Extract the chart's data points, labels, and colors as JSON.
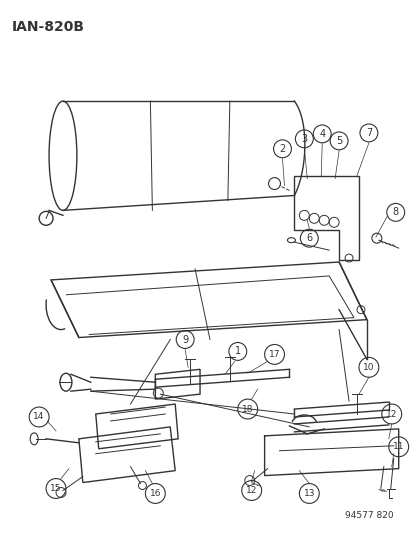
{
  "title": "IAN-820B",
  "part_number": "94577 820",
  "bg_color": "#ffffff",
  "lc": "#333333",
  "title_fontsize": 10,
  "label_fontsize": 7,
  "fig_width": 4.14,
  "fig_height": 5.33,
  "dpi": 100
}
